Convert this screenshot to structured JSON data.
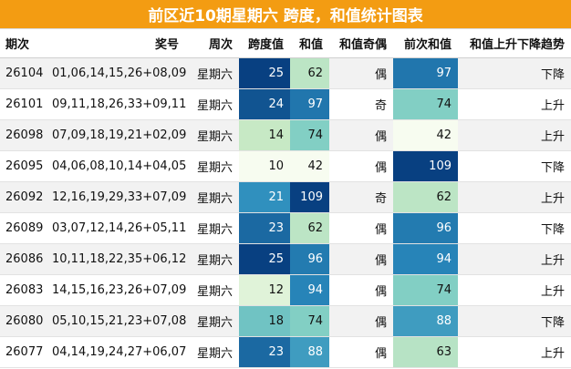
{
  "title": "前区近10期星期六 跨度，和值统计图表",
  "headers": [
    "期次",
    "奖号",
    "周次",
    "跨度值",
    "和值",
    "和值奇偶",
    "前次和值",
    "和值上升下降趋势"
  ],
  "rows": [
    {
      "issue": "26104",
      "numbers": "01,06,14,15,26+08,09",
      "weekday": "星期六",
      "span": 25,
      "sum": 62,
      "parity": "偶",
      "prev_sum": 97,
      "trend": "下降"
    },
    {
      "issue": "26101",
      "numbers": "09,11,18,26,33+09,11",
      "weekday": "星期六",
      "span": 24,
      "sum": 97,
      "parity": "奇",
      "prev_sum": 74,
      "trend": "上升"
    },
    {
      "issue": "26098",
      "numbers": "07,09,18,19,21+02,09",
      "weekday": "星期六",
      "span": 14,
      "sum": 74,
      "parity": "偶",
      "prev_sum": 42,
      "trend": "上升"
    },
    {
      "issue": "26095",
      "numbers": "04,06,08,10,14+04,05",
      "weekday": "星期六",
      "span": 10,
      "sum": 42,
      "parity": "偶",
      "prev_sum": 109,
      "trend": "下降"
    },
    {
      "issue": "26092",
      "numbers": "12,16,19,29,33+07,09",
      "weekday": "星期六",
      "span": 21,
      "sum": 109,
      "parity": "奇",
      "prev_sum": 62,
      "trend": "上升"
    },
    {
      "issue": "26089",
      "numbers": "03,07,12,14,26+05,11",
      "weekday": "星期六",
      "span": 23,
      "sum": 62,
      "parity": "偶",
      "prev_sum": 96,
      "trend": "下降"
    },
    {
      "issue": "26086",
      "numbers": "10,11,18,22,35+06,12",
      "weekday": "星期六",
      "span": 25,
      "sum": 96,
      "parity": "偶",
      "prev_sum": 94,
      "trend": "上升"
    },
    {
      "issue": "26083",
      "numbers": "14,15,16,23,26+07,09",
      "weekday": "星期六",
      "span": 12,
      "sum": 94,
      "parity": "偶",
      "prev_sum": 74,
      "trend": "上升"
    },
    {
      "issue": "26080",
      "numbers": "05,10,15,21,23+07,08",
      "weekday": "星期六",
      "span": 18,
      "sum": 74,
      "parity": "偶",
      "prev_sum": 88,
      "trend": "下降"
    },
    {
      "issue": "26077",
      "numbers": "04,14,19,24,27+06,07",
      "weekday": "星期六",
      "span": 23,
      "sum": 88,
      "parity": "偶",
      "prev_sum": 63,
      "trend": "上升"
    }
  ],
  "colors": {
    "title_bg": "#f39c12",
    "span_scale": [
      "#f7fcf0",
      "#ccebc5",
      "#7bccc4",
      "#2b8cbe",
      "#084081"
    ],
    "sum_scale": [
      "#f7fcf0",
      "#ccebc5",
      "#7bccc4",
      "#2b8cbe",
      "#084081"
    ]
  }
}
